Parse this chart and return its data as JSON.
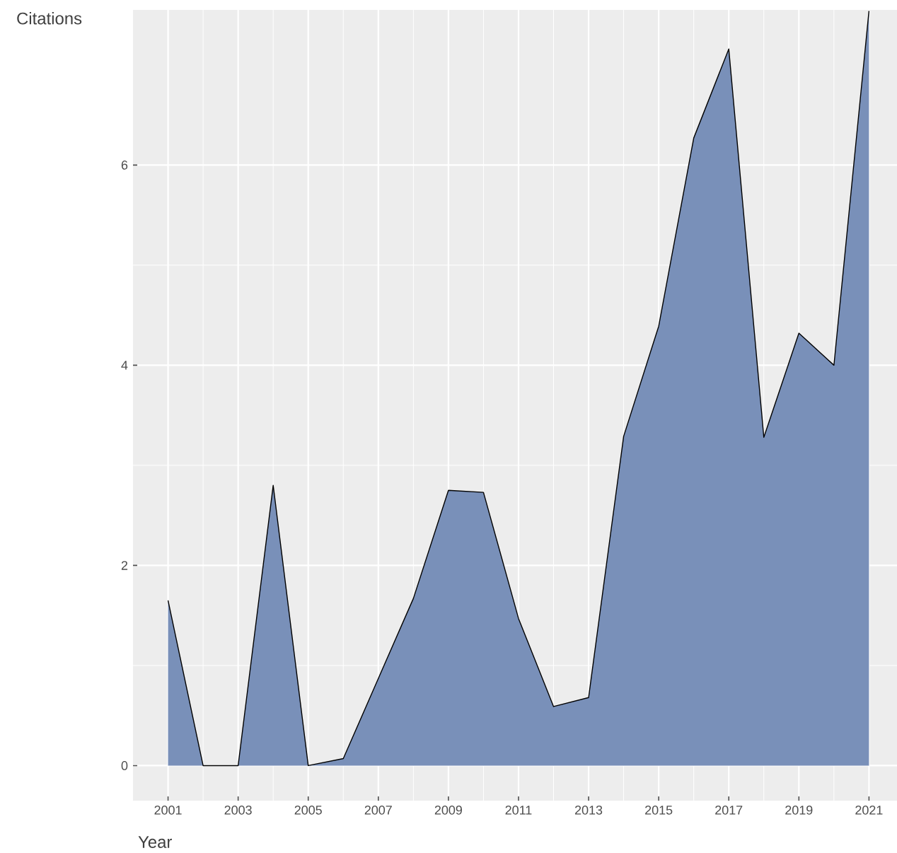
{
  "chart_data": {
    "type": "area",
    "xlabel": "Year",
    "ylabel": "Citations",
    "x": [
      2001,
      2002,
      2003,
      2004,
      2005,
      2006,
      2007,
      2008,
      2009,
      2010,
      2011,
      2012,
      2013,
      2014,
      2015,
      2016,
      2017,
      2018,
      2019,
      2020,
      2021
    ],
    "series": [
      {
        "color": "#7990b9",
        "values": [
          1.65,
          0,
          0,
          2.8,
          0,
          0.07,
          0.87,
          1.67,
          2.75,
          2.73,
          1.47,
          0.59,
          0.68,
          3.29,
          4.39,
          6.27,
          7.16,
          3.28,
          4.32,
          4.0,
          7.54
        ]
      }
    ],
    "xlim": [
      2000,
      2021.8
    ],
    "ylim": [
      -0.35,
      7.55
    ],
    "xticks": [
      2001,
      2003,
      2005,
      2007,
      2009,
      2011,
      2013,
      2015,
      2017,
      2019,
      2021
    ],
    "yticks": [
      0,
      2,
      4,
      6
    ],
    "grid": true
  }
}
